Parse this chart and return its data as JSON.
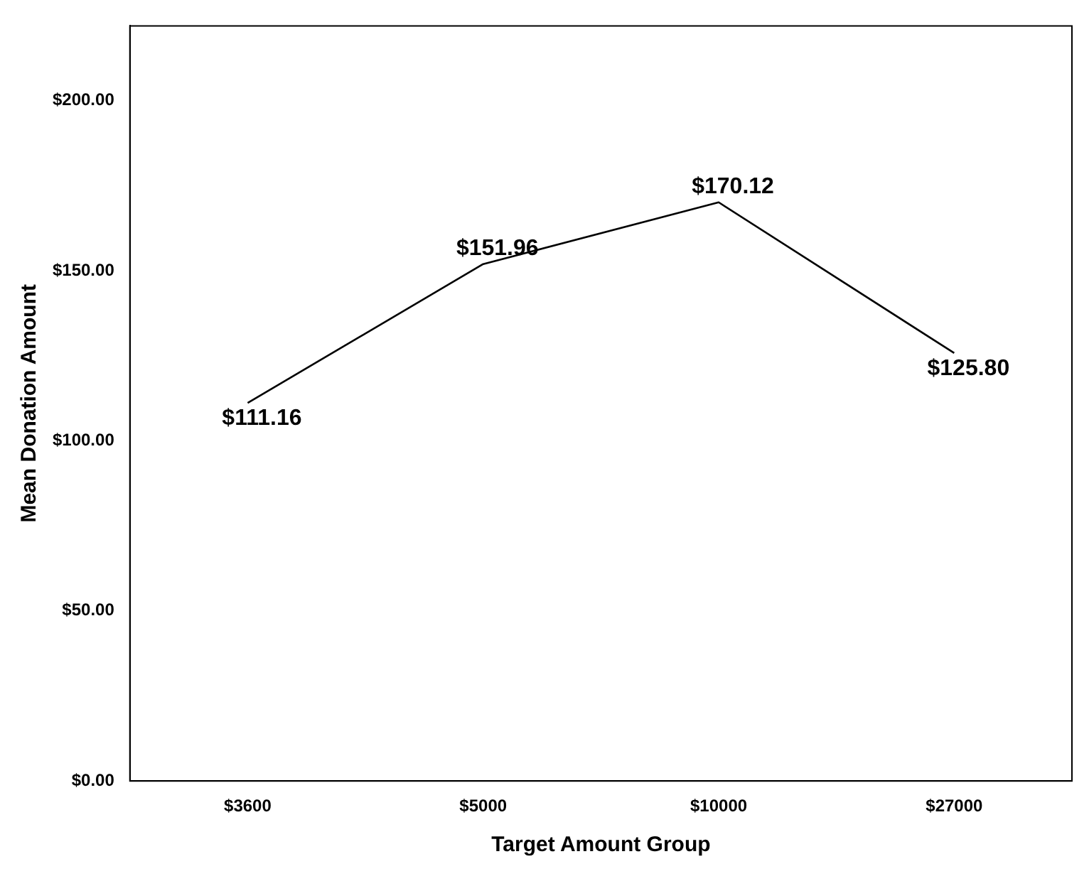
{
  "chart_data": {
    "type": "line",
    "xlabel": "Target Amount Group",
    "ylabel": "Mean Donation Amount",
    "categories": [
      "$3600",
      "$5000",
      "$10000",
      "$27000"
    ],
    "series": [
      {
        "color": "#000000",
        "values": [
          111.16,
          151.96,
          170.12,
          125.8
        ],
        "value_labels": [
          "$111.16",
          "$151.96",
          "$170.12",
          "$125.80"
        ]
      }
    ],
    "ylim": [
      0,
      222
    ],
    "yticks": [
      {
        "value": 0,
        "label": "$0.00"
      },
      {
        "value": 50,
        "label": "$50.00"
      },
      {
        "value": 100,
        "label": "$100.00"
      },
      {
        "value": 150,
        "label": "$150.00"
      },
      {
        "value": 200,
        "label": "$200.00"
      }
    ],
    "grid": false,
    "legend": false,
    "marker": "none",
    "line_style": "solid"
  }
}
